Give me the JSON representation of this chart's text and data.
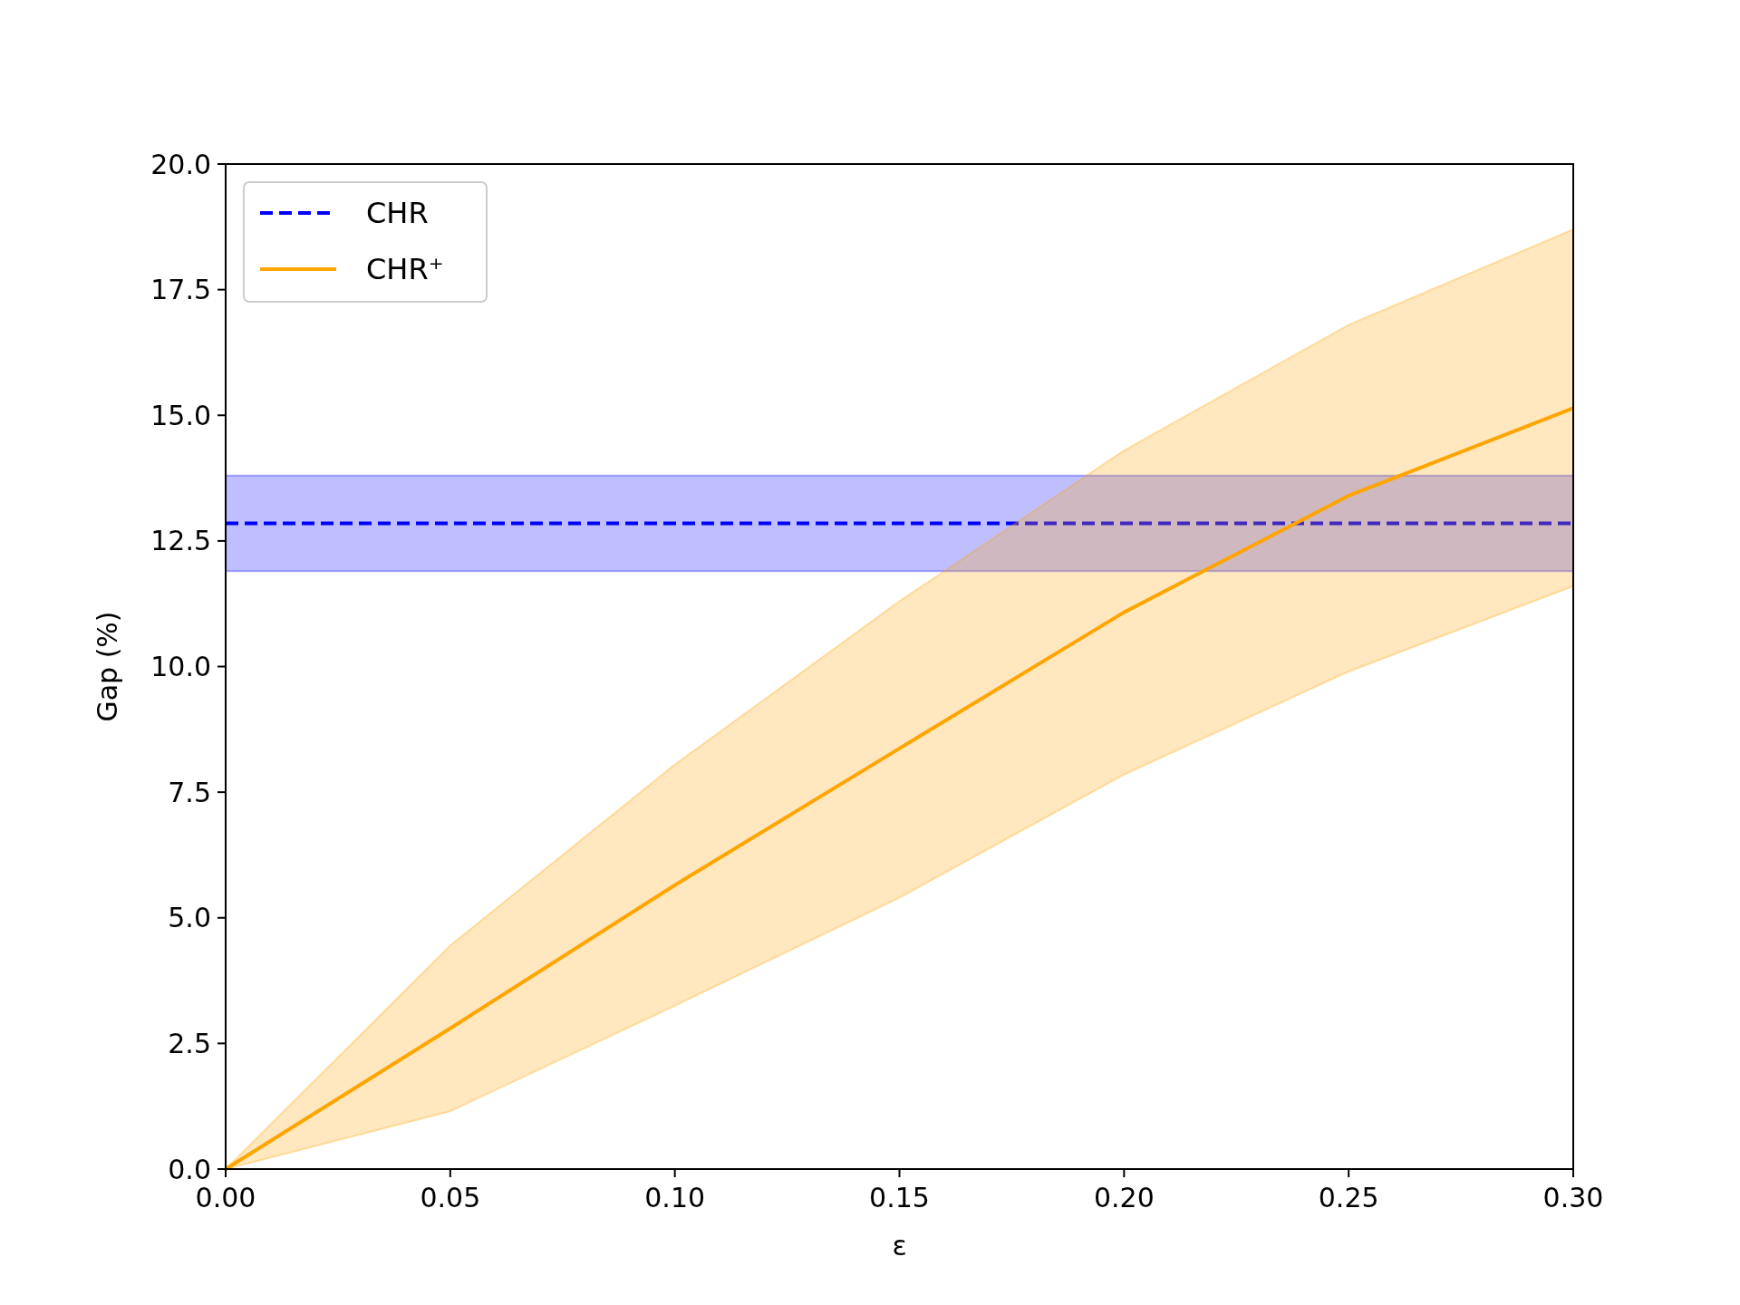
{
  "chart_data": {
    "type": "line",
    "xlabel": "ε",
    "ylabel": "Gap (%)",
    "xlim": [
      0,
      0.3
    ],
    "ylim": [
      0,
      20
    ],
    "xticks": [
      {
        "value": 0,
        "label": "0.00"
      },
      {
        "value": 0.05,
        "label": "0.05"
      },
      {
        "value": 0.1,
        "label": "0.10"
      },
      {
        "value": 0.15,
        "label": "0.15"
      },
      {
        "value": 0.2,
        "label": "0.20"
      },
      {
        "value": 0.25,
        "label": "0.25"
      },
      {
        "value": 0.3,
        "label": "0.30"
      }
    ],
    "yticks": [
      {
        "value": 0,
        "label": "0.0"
      },
      {
        "value": 2.5,
        "label": "2.5"
      },
      {
        "value": 5,
        "label": "5.0"
      },
      {
        "value": 7.5,
        "label": "7.5"
      },
      {
        "value": 10,
        "label": "10.0"
      },
      {
        "value": 12.5,
        "label": "12.5"
      },
      {
        "value": 15,
        "label": "15.0"
      },
      {
        "value": 17.5,
        "label": "17.5"
      },
      {
        "value": 20,
        "label": "20.0"
      }
    ],
    "grid": false,
    "legend": "top left",
    "marker": "none",
    "series": [
      {
        "name": "CHR",
        "color": "#0000ff",
        "line_style": "dashed",
        "x": [
          0,
          0.3
        ],
        "values": [
          12.85,
          12.85
        ],
        "lower": [
          11.9,
          11.9
        ],
        "upper": [
          13.8,
          13.8
        ]
      },
      {
        "name": "CHR⁺",
        "color": "#ffa500",
        "line_style": "solid",
        "x": [
          0,
          0.05,
          0.1,
          0.15,
          0.2,
          0.25,
          0.3
        ],
        "values": [
          0,
          2.8,
          5.65,
          8.37,
          11.08,
          13.4,
          15.14
        ],
        "lower": [
          0,
          1.15,
          3.25,
          5.4,
          7.85,
          9.9,
          11.6
        ],
        "upper": [
          0,
          4.45,
          8.05,
          11.3,
          14.3,
          16.8,
          18.7
        ]
      }
    ]
  }
}
